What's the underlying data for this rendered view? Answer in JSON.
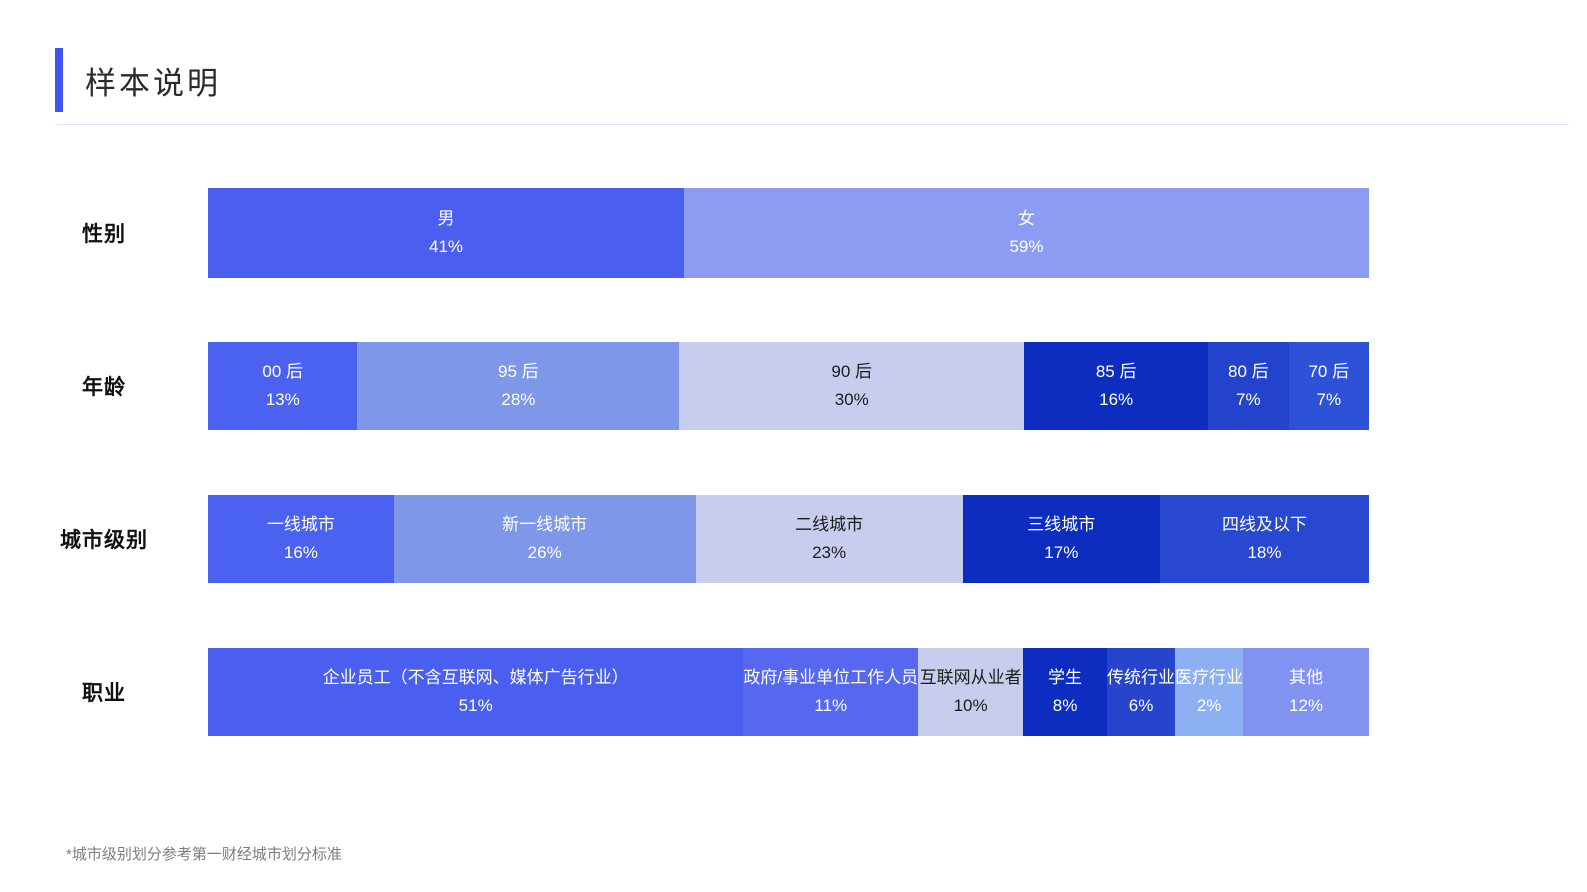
{
  "page": {
    "title": "样本说明",
    "footnote": "*城市级别划分参考第一财经城市划分标准"
  },
  "colors": {
    "accent": "#4353ee",
    "divider": "#dfe2f8"
  },
  "chart_data": {
    "type": "bar",
    "subtype": "horizontal-stacked-100",
    "unit": "%",
    "legend": "none",
    "rows": [
      {
        "label": "性别",
        "segments": [
          {
            "name": "男",
            "value": 41,
            "color": "#4a5ef0",
            "text_color": "#ffffff"
          },
          {
            "name": "女",
            "value": 59,
            "color": "#8d9cf3",
            "text_color": "#ffffff"
          }
        ]
      },
      {
        "label": "年龄",
        "segments": [
          {
            "name": "00 后",
            "value": 13,
            "color": "#4a62ef",
            "text_color": "#ffffff"
          },
          {
            "name": "95 后",
            "value": 28,
            "color": "#7e97e8",
            "text_color": "#ffffff"
          },
          {
            "name": "90 后",
            "value": 30,
            "color": "#c8cdee",
            "text_color": "#1b1b1b"
          },
          {
            "name": "85 后",
            "value": 16,
            "color": "#0d2dc1",
            "text_color": "#ffffff"
          },
          {
            "name": "80 后",
            "value": 7,
            "color": "#2343cd",
            "text_color": "#ffffff"
          },
          {
            "name": "70 后",
            "value": 7,
            "color": "#2d52d8",
            "text_color": "#ffffff"
          }
        ]
      },
      {
        "label": "城市级别",
        "segments": [
          {
            "name": "一线城市",
            "value": 16,
            "color": "#4a62ef",
            "text_color": "#ffffff"
          },
          {
            "name": "新一线城市",
            "value": 26,
            "color": "#7e97e8",
            "text_color": "#ffffff"
          },
          {
            "name": "二线城市",
            "value": 23,
            "color": "#c8cdee",
            "text_color": "#1b1b1b"
          },
          {
            "name": "三线城市",
            "value": 17,
            "color": "#0d2dc1",
            "text_color": "#ffffff"
          },
          {
            "name": "四线及以下",
            "value": 18,
            "color": "#2948d2",
            "text_color": "#ffffff"
          }
        ]
      },
      {
        "label": "职业",
        "segments": [
          {
            "name": "企业员工（不含互联网、媒体广告行业）",
            "value": 51,
            "color": "#4a5ff0",
            "text_color": "#ffffff"
          },
          {
            "name": "政府/事业单位工作人员",
            "value": 11,
            "color": "#5568ef",
            "text_color": "#ffffff"
          },
          {
            "name": "互联网从业者",
            "value": 10,
            "color": "#c8cdee",
            "text_color": "#1b1b1b"
          },
          {
            "name": "学生",
            "value": 8,
            "color": "#0d2dc1",
            "text_color": "#ffffff"
          },
          {
            "name": "传统行业",
            "value": 6,
            "color": "#2744cd",
            "text_color": "#ffffff"
          },
          {
            "name": "医疗行业",
            "value": 2,
            "color": "#8db0f3",
            "text_color": "#ffffff"
          },
          {
            "name": "其他",
            "value": 12,
            "color": "#8292f1",
            "text_color": "#ffffff"
          }
        ]
      }
    ]
  }
}
